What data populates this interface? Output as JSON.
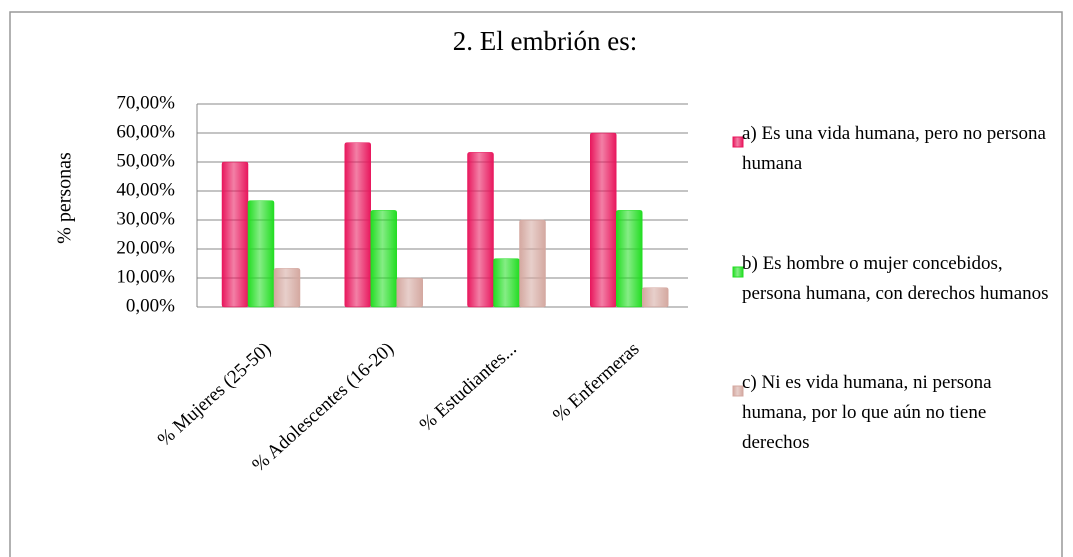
{
  "chart_data": {
    "type": "bar",
    "title": "2. El embrión  es:",
    "ylabel": "% personas",
    "categories": [
      "% Mujeres (25-50)",
      "% Adolescentes (16-20)",
      "% Estudiantes...",
      "% Enfermeras"
    ],
    "series": [
      {
        "name": "a) Es una vida humana, pero no persona humana",
        "color": "#e8175d",
        "values": [
          50,
          56.67,
          53.33,
          60
        ]
      },
      {
        "name": "b) Es hombre o mujer concebidos, persona humana, con derechos humanos",
        "color": "#22dd22",
        "values": [
          36.67,
          33.33,
          16.67,
          33.33
        ]
      },
      {
        "name": "c) Ni es vida humana, ni persona humana, por lo que aún no tiene derechos",
        "color": "#d4a8a0",
        "values": [
          13.33,
          10,
          30,
          6.67
        ]
      }
    ],
    "ylim": [
      0,
      70
    ],
    "yticks": [
      {
        "value": 0,
        "label": "0,00%"
      },
      {
        "value": 10,
        "label": "10,00%"
      },
      {
        "value": 20,
        "label": "20,00%"
      },
      {
        "value": 30,
        "label": "30,00%"
      },
      {
        "value": 40,
        "label": "40,00%"
      },
      {
        "value": 50,
        "label": "50,00%"
      },
      {
        "value": 60,
        "label": "60,00%"
      },
      {
        "value": 70,
        "label": "70,00%"
      }
    ],
    "grid": true,
    "legend": "right"
  }
}
